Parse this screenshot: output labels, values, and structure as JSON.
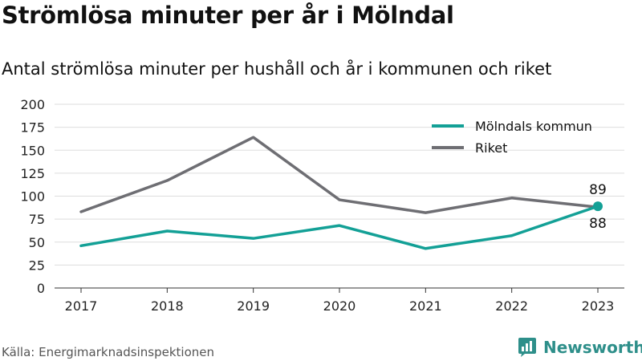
{
  "title": "Strömlösa minuter per år i Mölndal",
  "subtitle": "Antal strömlösa minuter per hushåll och år i kommunen och riket",
  "source": "Källa: Energimarknadsinspektionen",
  "brand": {
    "name": "Newsworthy",
    "icon": "newsworthy-logo-icon",
    "color": "#2e8f8a"
  },
  "chart_data": {
    "type": "line",
    "title": "Strömlösa minuter per år i Mölndal",
    "subtitle": "Antal strömlösa minuter per hushåll och år i kommunen och riket",
    "x": [
      "2017",
      "2018",
      "2019",
      "2020",
      "2021",
      "2022",
      "2023"
    ],
    "series": [
      {
        "name": "Mölndals kommun",
        "color": "#13a096",
        "values": [
          46,
          62,
          54,
          68,
          43,
          57,
          89
        ]
      },
      {
        "name": "Riket",
        "color": "#6e6e73",
        "values": [
          83,
          117,
          164,
          96,
          82,
          98,
          88
        ]
      }
    ],
    "yticks": [
      "0",
      "25",
      "50",
      "75",
      "100",
      "125",
      "150",
      "175",
      "200"
    ],
    "ylim": [
      0,
      200
    ],
    "grid": true,
    "legend": "top-right",
    "end_labels": [
      {
        "series": "Mölndals kommun",
        "text": "89"
      },
      {
        "series": "Riket",
        "text": "88"
      }
    ]
  }
}
